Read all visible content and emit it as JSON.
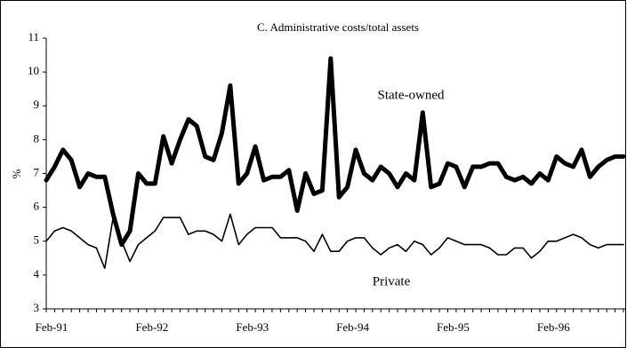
{
  "chart_data": {
    "type": "line",
    "title": "C. Administrative costs/total assets",
    "ylabel": "%",
    "categories": [
      "Feb-91",
      null,
      null,
      null,
      null,
      null,
      null,
      null,
      null,
      null,
      null,
      null,
      "Feb-92",
      null,
      null,
      null,
      null,
      null,
      null,
      null,
      null,
      null,
      null,
      null,
      "Feb-93",
      null,
      null,
      null,
      null,
      null,
      null,
      null,
      null,
      null,
      null,
      null,
      "Feb-94",
      null,
      null,
      null,
      null,
      null,
      null,
      null,
      null,
      null,
      null,
      null,
      "Feb-95",
      null,
      null,
      null,
      null,
      null,
      null,
      null,
      null,
      null,
      null,
      null,
      "Feb-96",
      null,
      null,
      null,
      null,
      null,
      null,
      null,
      null,
      null
    ],
    "series": [
      {
        "name": "State-owned",
        "color": "#000000",
        "values": [
          6.8,
          7.2,
          7.7,
          7.4,
          6.6,
          7.0,
          6.9,
          6.9,
          5.8,
          4.9,
          5.3,
          7.0,
          6.7,
          6.7,
          8.1,
          7.3,
          8.0,
          8.6,
          8.4,
          7.5,
          7.4,
          8.2,
          9.6,
          6.7,
          7.0,
          7.8,
          6.8,
          6.9,
          6.9,
          7.1,
          5.9,
          7.0,
          6.4,
          6.5,
          10.4,
          6.3,
          6.6,
          7.7,
          7.0,
          6.8,
          7.2,
          7.0,
          6.6,
          7.0,
          6.8,
          8.8,
          6.6,
          6.7,
          7.3,
          7.2,
          6.6,
          7.2,
          7.2,
          7.3,
          7.3,
          6.9,
          6.8,
          6.9,
          6.7,
          7.0,
          6.8,
          7.5,
          7.3,
          7.2,
          7.7,
          6.9,
          7.2,
          7.4,
          7.5,
          7.5
        ]
      },
      {
        "name": "Private",
        "color": "#000000",
        "values": [
          5.0,
          5.3,
          5.4,
          5.3,
          5.1,
          4.9,
          4.8,
          4.2,
          5.7,
          5.0,
          4.4,
          4.9,
          5.1,
          5.3,
          5.7,
          5.7,
          5.7,
          5.2,
          5.3,
          5.3,
          5.2,
          5.0,
          5.8,
          4.9,
          5.2,
          5.4,
          5.4,
          5.4,
          5.1,
          5.1,
          5.1,
          5.0,
          4.7,
          5.2,
          4.7,
          4.7,
          5.0,
          5.1,
          5.1,
          4.8,
          4.6,
          4.8,
          4.9,
          4.7,
          5.0,
          4.9,
          4.6,
          4.8,
          5.1,
          5.0,
          4.9,
          4.9,
          4.9,
          4.8,
          4.6,
          4.6,
          4.8,
          4.8,
          4.5,
          4.7,
          5.0,
          5.0,
          5.1,
          5.2,
          5.1,
          4.9,
          4.8,
          4.9,
          4.9,
          4.9
        ]
      }
    ],
    "ylim": [
      3,
      11
    ],
    "yticks": [
      3,
      4,
      5,
      6,
      7,
      8,
      9,
      10,
      11
    ]
  }
}
